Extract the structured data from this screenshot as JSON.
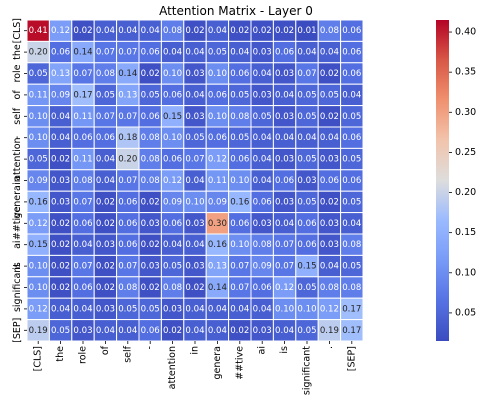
{
  "chart_data": {
    "type": "heatmap",
    "title": "Attention Matrix - Layer 0",
    "x_labels": [
      "[CLS]",
      "the",
      "role",
      "of",
      "self",
      "-",
      "attention",
      "in",
      "genera",
      "##tive",
      "ai",
      "is",
      "significant",
      ".",
      "[SEP]"
    ],
    "y_labels": [
      "[CLS]",
      "the",
      "role",
      "of",
      "self",
      "-",
      "attention",
      "in",
      "genera",
      "##tive",
      "ai",
      "is",
      "significant",
      ".",
      "[SEP]"
    ],
    "values": [
      [
        0.41,
        0.12,
        0.02,
        0.04,
        0.04,
        0.04,
        0.08,
        0.02,
        0.04,
        0.02,
        0.02,
        0.02,
        0.01,
        0.08,
        0.06
      ],
      [
        0.2,
        0.06,
        0.14,
        0.07,
        0.07,
        0.06,
        0.04,
        0.04,
        0.05,
        0.04,
        0.03,
        0.06,
        0.04,
        0.04,
        0.06
      ],
      [
        0.05,
        0.13,
        0.07,
        0.08,
        0.14,
        0.02,
        0.1,
        0.03,
        0.1,
        0.06,
        0.04,
        0.03,
        0.07,
        0.02,
        0.06
      ],
      [
        0.11,
        0.09,
        0.17,
        0.05,
        0.13,
        0.05,
        0.06,
        0.04,
        0.06,
        0.05,
        0.03,
        0.04,
        0.05,
        0.05,
        0.04
      ],
      [
        0.1,
        0.04,
        0.11,
        0.07,
        0.07,
        0.06,
        0.15,
        0.03,
        0.1,
        0.08,
        0.05,
        0.03,
        0.05,
        0.02,
        0.05
      ],
      [
        0.1,
        0.04,
        0.06,
        0.06,
        0.18,
        0.08,
        0.1,
        0.05,
        0.06,
        0.05,
        0.04,
        0.04,
        0.04,
        0.04,
        0.06
      ],
      [
        0.05,
        0.02,
        0.11,
        0.04,
        0.2,
        0.08,
        0.06,
        0.07,
        0.12,
        0.06,
        0.04,
        0.03,
        0.05,
        0.03,
        0.05
      ],
      [
        0.09,
        0.03,
        0.08,
        0.04,
        0.07,
        0.08,
        0.12,
        0.04,
        0.11,
        0.1,
        0.04,
        0.06,
        0.03,
        0.06,
        0.06
      ],
      [
        0.16,
        0.03,
        0.07,
        0.02,
        0.06,
        0.02,
        0.09,
        0.1,
        0.09,
        0.16,
        0.06,
        0.03,
        0.05,
        0.02,
        0.05
      ],
      [
        0.12,
        0.02,
        0.06,
        0.02,
        0.06,
        0.03,
        0.06,
        0.03,
        0.3,
        0.06,
        0.03,
        0.04,
        0.06,
        0.03,
        0.04
      ],
      [
        0.15,
        0.02,
        0.04,
        0.03,
        0.06,
        0.02,
        0.04,
        0.04,
        0.16,
        0.1,
        0.08,
        0.07,
        0.06,
        0.03,
        0.08
      ],
      [
        0.1,
        0.02,
        0.07,
        0.02,
        0.07,
        0.03,
        0.05,
        0.03,
        0.13,
        0.07,
        0.09,
        0.07,
        0.15,
        0.04,
        0.05
      ],
      [
        0.1,
        0.02,
        0.06,
        0.02,
        0.08,
        0.02,
        0.08,
        0.02,
        0.14,
        0.07,
        0.06,
        0.12,
        0.05,
        0.08,
        0.08
      ],
      [
        0.12,
        0.04,
        0.04,
        0.03,
        0.05,
        0.05,
        0.03,
        0.04,
        0.04,
        0.04,
        0.04,
        0.1,
        0.1,
        0.12,
        0.17
      ],
      [
        0.19,
        0.05,
        0.03,
        0.04,
        0.04,
        0.06,
        0.02,
        0.04,
        0.04,
        0.02,
        0.03,
        0.04,
        0.05,
        0.19,
        0.17
      ]
    ],
    "colormap": "coolwarm",
    "vmin": 0.015,
    "vmax": 0.415,
    "colorbar_ticks": [
      0.05,
      0.1,
      0.15,
      0.2,
      0.25,
      0.3,
      0.35,
      0.4
    ],
    "colorbar_tick_labels": [
      "0.05",
      "0.10",
      "0.15",
      "0.20",
      "0.25",
      "0.30",
      "0.35",
      "0.40"
    ],
    "gridlines": "white",
    "annotations": true
  }
}
